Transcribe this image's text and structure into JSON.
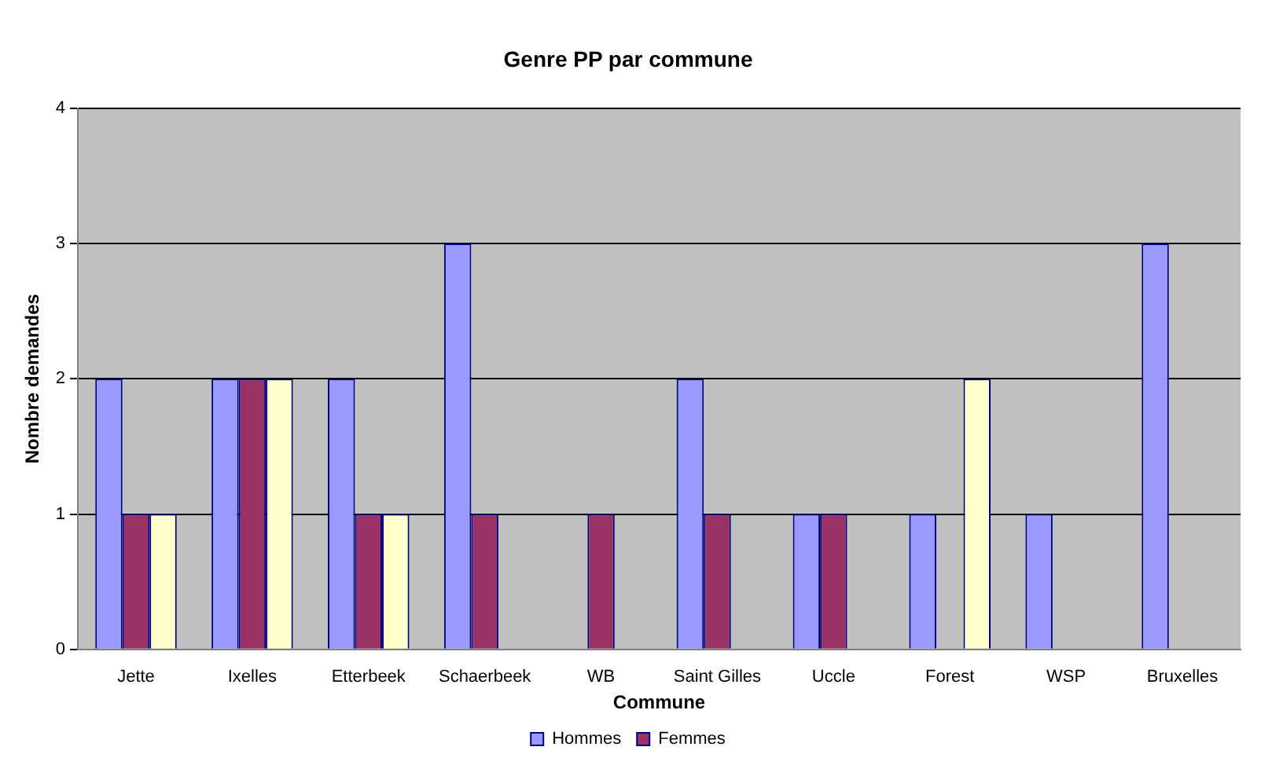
{
  "chart_data": {
    "type": "bar",
    "title": "Genre PP par commune",
    "xlabel": "Commune",
    "ylabel": "Nombre demandes",
    "categories": [
      "Jette",
      "Ixelles",
      "Etterbeek",
      "Schaerbeek",
      "WB",
      "Saint Gilles",
      "Uccle",
      "Forest",
      "WSP",
      "Bruxelles"
    ],
    "series": [
      {
        "name": "Hommes",
        "color": "#9999ff",
        "values": [
          2,
          2,
          2,
          3,
          0,
          2,
          1,
          1,
          1,
          3
        ]
      },
      {
        "name": "Femmes",
        "color": "#993366",
        "values": [
          1,
          2,
          1,
          1,
          1,
          1,
          1,
          0,
          0,
          0
        ]
      },
      {
        "color": "#ffffcc",
        "values": [
          1,
          2,
          1,
          0,
          0,
          0,
          0,
          2,
          0,
          0
        ]
      }
    ],
    "ylim": [
      0,
      4
    ],
    "yticks": [
      0,
      1,
      2,
      3,
      4
    ],
    "grid": "y",
    "legend": "bottom"
  }
}
